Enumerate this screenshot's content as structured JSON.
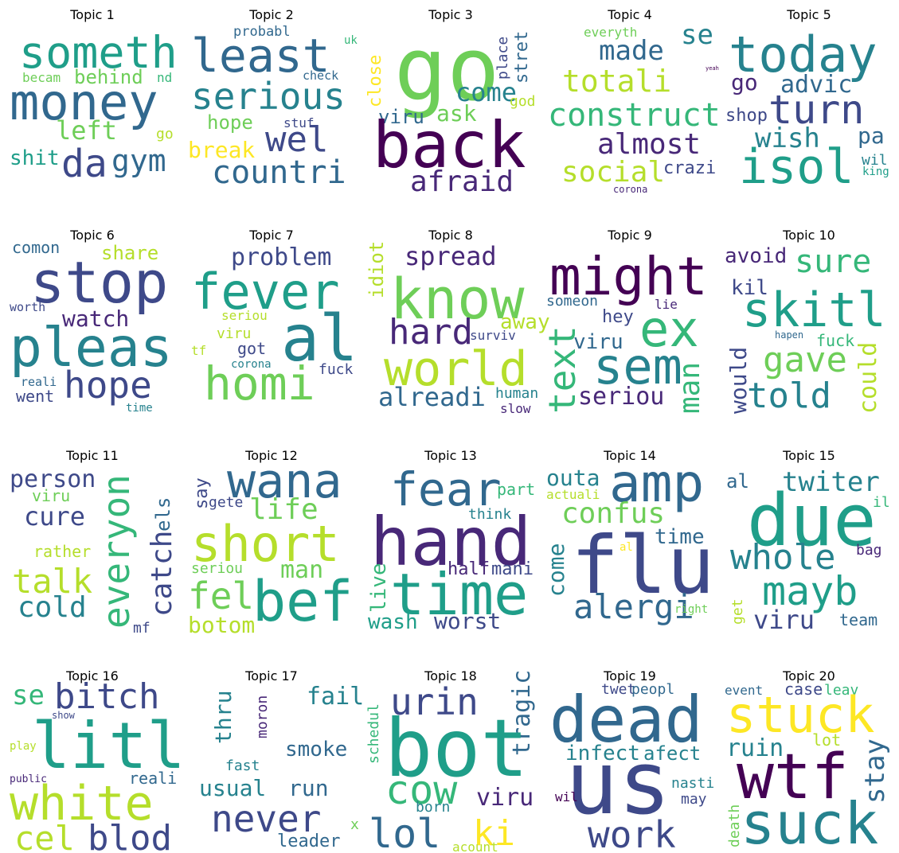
{
  "topics": [
    {
      "title": "Topic 1",
      "words": [
        "someth",
        "money",
        "becam",
        "behind",
        "nd",
        "left",
        "go",
        "shit",
        "da",
        "gym"
      ]
    },
    {
      "title": "Topic 2",
      "words": [
        "probabl",
        "uk",
        "least",
        "check",
        "serious",
        "hope",
        "stuf",
        "wel",
        "break",
        "countri"
      ]
    },
    {
      "title": "Topic 3",
      "words": [
        "go",
        "close",
        "place",
        "stret",
        "come",
        "god",
        "viru",
        "ask",
        "back",
        "afraid"
      ]
    },
    {
      "title": "Topic 4",
      "words": [
        "everyth",
        "se",
        "made",
        "totali",
        "construct",
        "almost",
        "yeah",
        "social",
        "crazi",
        "corona"
      ]
    },
    {
      "title": "Topic 5",
      "words": [
        "today",
        "go",
        "advic",
        "turn",
        "shop",
        "wish",
        "pa",
        "isol",
        "wil",
        "king"
      ]
    },
    {
      "title": "Topic 6",
      "words": [
        "comon",
        "share",
        "stop",
        "worth",
        "watch",
        "pleas",
        "hope",
        "reali",
        "went",
        "time"
      ]
    },
    {
      "title": "Topic 7",
      "words": [
        "problem",
        "fever",
        "al",
        "seriou",
        "viru",
        "got",
        "tf",
        "corona",
        "fuck",
        "homi"
      ]
    },
    {
      "title": "Topic 8",
      "words": [
        "spread",
        "idiot",
        "know",
        "hard",
        "away",
        "surviv",
        "world",
        "alreadi",
        "human",
        "slow"
      ]
    },
    {
      "title": "Topic 9",
      "words": [
        "might",
        "someon",
        "lie",
        "hey",
        "viru",
        "ex",
        "text",
        "sem",
        "man",
        "seriou"
      ]
    },
    {
      "title": "Topic 10",
      "words": [
        "avoid",
        "sure",
        "kil",
        "skitl",
        "hapen",
        "fuck",
        "would",
        "gave",
        "could",
        "told"
      ]
    },
    {
      "title": "Topic 11",
      "words": [
        "person",
        "viru",
        "cure",
        "everyon",
        "catch",
        "els",
        "rather",
        "talk",
        "cold",
        "mf"
      ]
    },
    {
      "title": "Topic 12",
      "words": [
        "wana",
        "say",
        "gete",
        "life",
        "short",
        "seriou",
        "man",
        "fel",
        "bef",
        "botom"
      ]
    },
    {
      "title": "Topic 13",
      "words": [
        "fear",
        "part",
        "think",
        "hand",
        "live",
        "half",
        "mani",
        "time",
        "wash",
        "worst"
      ]
    },
    {
      "title": "Topic 14",
      "words": [
        "outa",
        "amp",
        "actuali",
        "confus",
        "come",
        "time",
        "al",
        "flu",
        "alergi",
        "right"
      ]
    },
    {
      "title": "Topic 15",
      "words": [
        "twiter",
        "al",
        "il",
        "due",
        "whole",
        "bag",
        "get",
        "mayb",
        "viru",
        "team"
      ]
    },
    {
      "title": "Topic 16",
      "words": [
        "se",
        "bitch",
        "show",
        "litl",
        "play",
        "public",
        "reali",
        "white",
        "cel",
        "blod"
      ]
    },
    {
      "title": "Topic 17",
      "words": [
        "thru",
        "moron",
        "fail",
        "fast",
        "smoke",
        "usual",
        "run",
        "never",
        "x",
        "leader"
      ]
    },
    {
      "title": "Topic 18",
      "words": [
        "urin",
        "schedul",
        "tragic",
        "bot",
        "cow",
        "viru",
        "lol",
        "born",
        "ki",
        "acount"
      ]
    },
    {
      "title": "Topic 19",
      "words": [
        "twet",
        "peopl",
        "dead",
        "infect",
        "afect",
        "us",
        "nasti",
        "wil",
        "may",
        "work"
      ]
    },
    {
      "title": "Topic 20",
      "words": [
        "event",
        "case",
        "leav",
        "stuck",
        "ruin",
        "lot",
        "stay",
        "wtf",
        "death",
        "suck"
      ]
    }
  ]
}
